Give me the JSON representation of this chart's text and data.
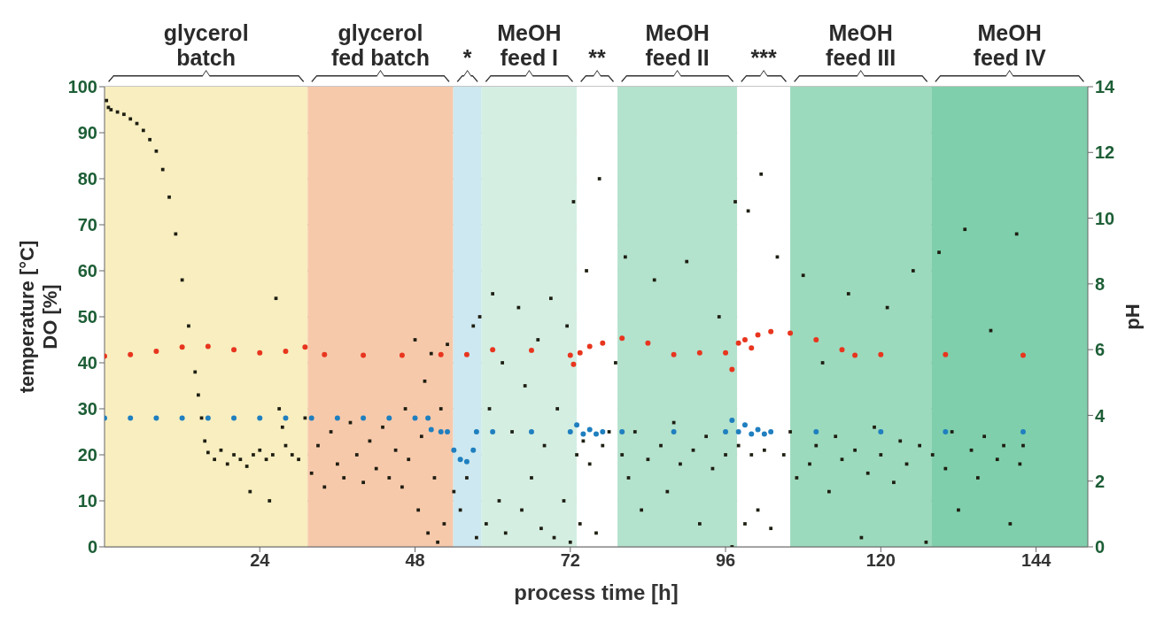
{
  "chart_data": {
    "type": "scatter",
    "xlabel": "process time [h]",
    "ylabel": "temperature [°C]\nDO [%]",
    "y2label": "pH",
    "xlim": [
      0,
      152
    ],
    "xticks": [
      24,
      48,
      72,
      96,
      120,
      144
    ],
    "ylim": [
      0,
      100
    ],
    "yticks": [
      0,
      10,
      20,
      30,
      40,
      50,
      60,
      70,
      80,
      90,
      100
    ],
    "y2lim": [
      0,
      14
    ],
    "y2ticks": [
      0,
      2,
      4,
      6,
      8,
      10,
      12,
      14
    ],
    "grid": "y",
    "legend": false,
    "bands": [
      {
        "axis": "x",
        "from": 0,
        "to": 31.4,
        "label": "glycerol\nbatch",
        "color": "#f8eec0"
      },
      {
        "axis": "x",
        "from": 31.4,
        "to": 53.9,
        "label": "glycerol\nfed batch",
        "color": "#f7c9ab"
      },
      {
        "axis": "x",
        "from": 53.9,
        "to": 58.3,
        "label": "*",
        "color": "#cde8f0"
      },
      {
        "axis": "x",
        "from": 58.3,
        "to": 73,
        "label": "MeOH\nfeed I",
        "color": "#d4eee2"
      },
      {
        "axis": "x",
        "from": 73,
        "to": 79.3,
        "label": "**",
        "color": "#ffffff"
      },
      {
        "axis": "x",
        "from": 79.3,
        "to": 97.8,
        "label": "MeOH\nfeed II",
        "color": "#b3e2cd"
      },
      {
        "axis": "x",
        "from": 97.8,
        "to": 106,
        "label": "***",
        "color": "#ffffff"
      },
      {
        "axis": "x",
        "from": 106,
        "to": 127.8,
        "label": "MeOH\nfeed III",
        "color": "#9cdabd"
      },
      {
        "axis": "x",
        "from": 127.8,
        "to": 152,
        "label": "MeOH\nfeed IV",
        "color": "#7fcfac"
      }
    ],
    "series": [
      {
        "color": "#1e1e12",
        "marker": "square",
        "x": [
          0.3,
          0.6,
          1,
          2,
          3,
          4,
          5,
          6,
          7,
          8,
          9,
          10,
          11,
          12,
          13,
          14,
          14.5,
          15,
          15.5,
          16,
          17,
          18,
          19,
          20,
          21,
          22,
          22.5,
          23,
          24,
          25,
          25.5,
          26,
          26.5,
          27,
          27.5,
          28,
          29,
          30,
          31,
          32,
          33,
          34,
          35,
          36,
          37,
          38,
          39,
          40,
          41,
          42,
          43,
          44,
          45,
          46,
          46.5,
          47,
          48,
          48.5,
          49,
          49.5,
          50,
          50.5,
          51,
          51.5,
          52,
          52.5,
          53,
          54,
          55,
          56,
          57,
          57.5,
          58,
          59,
          59.5,
          60,
          61,
          61.5,
          62,
          63,
          64,
          64.5,
          65,
          66,
          67,
          67.5,
          68,
          69,
          69.5,
          70,
          71,
          71.5,
          72,
          72.5,
          73,
          73.5,
          74,
          74.5,
          75,
          76,
          76.5,
          77,
          78,
          79,
          80,
          80.5,
          81,
          82,
          83,
          84,
          85,
          86,
          87,
          88,
          89,
          90,
          91,
          92,
          93,
          94,
          95,
          96,
          97,
          97.5,
          98,
          99,
          99.5,
          100,
          101,
          101.5,
          102,
          103,
          104,
          105,
          106,
          107,
          108,
          109,
          110,
          111,
          112,
          113,
          114,
          115,
          116,
          117,
          118,
          119,
          120,
          121,
          122,
          123,
          124,
          125,
          126,
          127,
          128,
          129,
          130,
          131,
          132,
          133,
          134,
          135,
          136,
          137,
          138,
          139,
          140,
          141,
          141.5,
          142
        ],
        "values": [
          97,
          95.5,
          95,
          94.5,
          94,
          93,
          92,
          90.5,
          88.5,
          86,
          82,
          76,
          68,
          58,
          48,
          38,
          33,
          28,
          23,
          20.5,
          19,
          21,
          18,
          20,
          19,
          17.5,
          12,
          20,
          21,
          19,
          10,
          20,
          54,
          30,
          26,
          22,
          20,
          19,
          28,
          16,
          22,
          13,
          25,
          18,
          15,
          27,
          20,
          14,
          23,
          17,
          26,
          15,
          21,
          13,
          30,
          19,
          45,
          8,
          24,
          36,
          3,
          42,
          15,
          1,
          30,
          5,
          44,
          12,
          8,
          15,
          48,
          2,
          50,
          5,
          30,
          55,
          10,
          40,
          3,
          25,
          52,
          8,
          35,
          15,
          45,
          4,
          22,
          54,
          2,
          30,
          10,
          48,
          1,
          75,
          20,
          5,
          23,
          60,
          18,
          3,
          80,
          22,
          25,
          40,
          20,
          63,
          15,
          25,
          8,
          19,
          58,
          22,
          12,
          27,
          18,
          62,
          21,
          5,
          24,
          17,
          50,
          20,
          0,
          75,
          22,
          5,
          73,
          20,
          8,
          81,
          21,
          4,
          63,
          20,
          25,
          15,
          59,
          18,
          22,
          40,
          12,
          24,
          19,
          55,
          21,
          2,
          16,
          26,
          20,
          52,
          14,
          23,
          18,
          60,
          22,
          1,
          20,
          64,
          17,
          25,
          8,
          69,
          21,
          15,
          24,
          47,
          19,
          22,
          5,
          68,
          18,
          22
        ]
      },
      {
        "color": "#1f7fbf",
        "marker": "circle",
        "x": [
          0,
          4,
          8,
          12,
          16,
          20,
          24,
          28,
          32,
          36,
          40,
          44,
          48,
          50,
          50.5,
          52,
          53,
          54,
          55,
          56,
          57,
          57.5,
          60,
          66,
          72,
          73,
          74,
          75,
          76,
          77,
          80,
          88,
          96,
          97,
          98,
          99,
          100,
          101,
          102,
          103,
          110,
          120,
          130,
          142
        ],
        "values": [
          28,
          28,
          28,
          28,
          28,
          28,
          28,
          28,
          28,
          28,
          28,
          28,
          28,
          28,
          25.5,
          25,
          25,
          21,
          19,
          18.5,
          21,
          25,
          25,
          25,
          25,
          26.5,
          24.5,
          25.5,
          24.5,
          25,
          25,
          25,
          25,
          27.5,
          25,
          26.5,
          24.5,
          25.5,
          24.5,
          25,
          25,
          25,
          25,
          25
        ]
      },
      {
        "color": "#e8351e",
        "marker": "circle",
        "axis": "y2",
        "x": [
          0,
          4,
          8,
          12,
          16,
          20,
          24,
          28,
          31,
          34,
          40,
          46,
          52,
          56,
          60,
          66,
          72,
          72.5,
          73.5,
          75,
          77,
          80,
          84,
          88,
          92,
          96,
          97,
          98,
          99,
          100,
          101,
          103,
          106,
          110,
          114,
          116,
          120,
          130,
          142
        ],
        "values": [
          5.8,
          5.85,
          5.95,
          6.08,
          6.1,
          6.0,
          5.9,
          5.95,
          6.08,
          5.85,
          5.83,
          5.83,
          5.85,
          5.85,
          6.0,
          5.98,
          5.83,
          5.55,
          5.9,
          6.1,
          6.2,
          6.35,
          6.2,
          5.85,
          5.9,
          5.9,
          5.4,
          6.2,
          6.3,
          6.05,
          6.45,
          6.55,
          6.5,
          6.3,
          6.0,
          5.83,
          5.85,
          5.85,
          5.83
        ]
      }
    ]
  }
}
